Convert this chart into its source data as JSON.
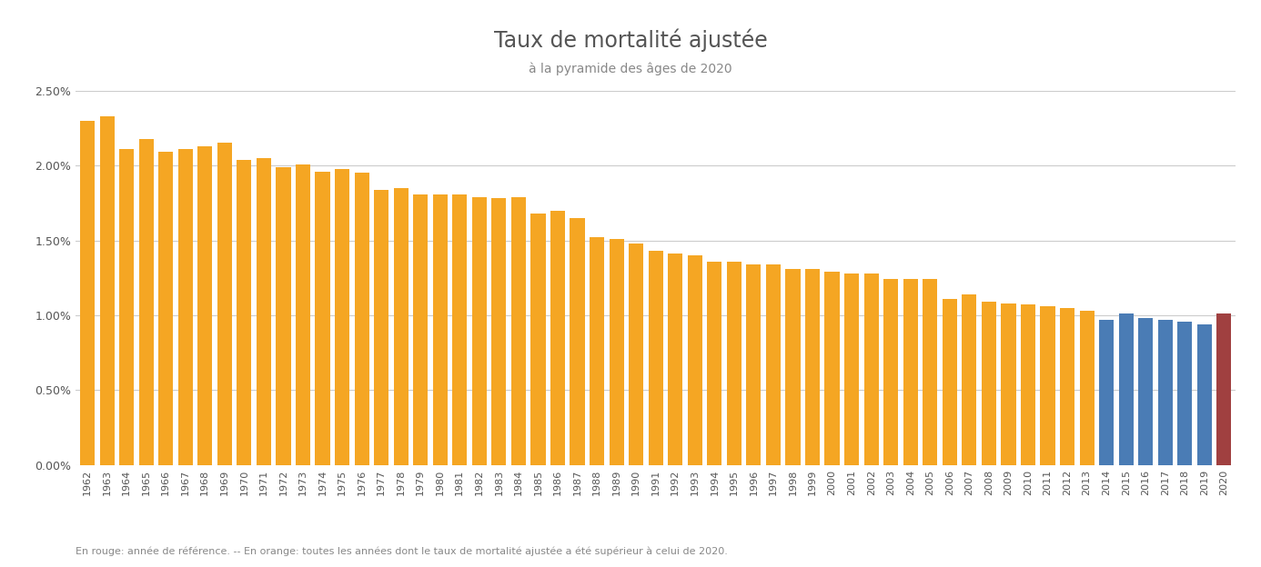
{
  "title": "Taux de mortalité ajustée",
  "subtitle": "à la pyramide des âges de 2020",
  "footnote": "En rouge: année de référence. -- En orange: toutes les années dont le taux de mortalité ajustée a été supérieur à celui de 2020.",
  "years": [
    1962,
    1963,
    1964,
    1965,
    1966,
    1967,
    1968,
    1969,
    1970,
    1971,
    1972,
    1973,
    1974,
    1975,
    1976,
    1977,
    1978,
    1979,
    1980,
    1981,
    1982,
    1983,
    1984,
    1985,
    1986,
    1987,
    1988,
    1989,
    1990,
    1991,
    1992,
    1993,
    1994,
    1995,
    1996,
    1997,
    1998,
    1999,
    2000,
    2001,
    2002,
    2003,
    2004,
    2005,
    2006,
    2007,
    2008,
    2009,
    2010,
    2011,
    2012,
    2013,
    2014,
    2015,
    2016,
    2017,
    2018,
    2019,
    2020
  ],
  "values": [
    0.023,
    0.0233,
    0.0211,
    0.0218,
    0.0209,
    0.0211,
    0.0213,
    0.0215,
    0.0204,
    0.0205,
    0.0199,
    0.0201,
    0.0196,
    0.0198,
    0.0195,
    0.0184,
    0.0185,
    0.0181,
    0.0181,
    0.0181,
    0.0179,
    0.0178,
    0.0179,
    0.0168,
    0.017,
    0.0165,
    0.0152,
    0.0151,
    0.0148,
    0.0143,
    0.0141,
    0.014,
    0.0136,
    0.0136,
    0.0134,
    0.0134,
    0.0131,
    0.0131,
    0.0129,
    0.0128,
    0.0128,
    0.0124,
    0.0124,
    0.0124,
    0.0111,
    0.0114,
    0.0109,
    0.0108,
    0.0107,
    0.0106,
    0.0105,
    0.0103,
    0.0097,
    0.0101,
    0.0098,
    0.0097,
    0.0096,
    0.0094,
    0.0101
  ],
  "reference_value": 0.0101,
  "color_orange": "#F5A623",
  "color_blue": "#4A7CB5",
  "color_red": "#A04040",
  "background_color": "#FFFFFF",
  "grid_color": "#CCCCCC",
  "title_color": "#555555",
  "subtitle_color": "#888888",
  "tick_color": "#555555",
  "ylim": [
    0,
    0.025
  ],
  "yticks": [
    0.0,
    0.005,
    0.01,
    0.015,
    0.02,
    0.025
  ]
}
